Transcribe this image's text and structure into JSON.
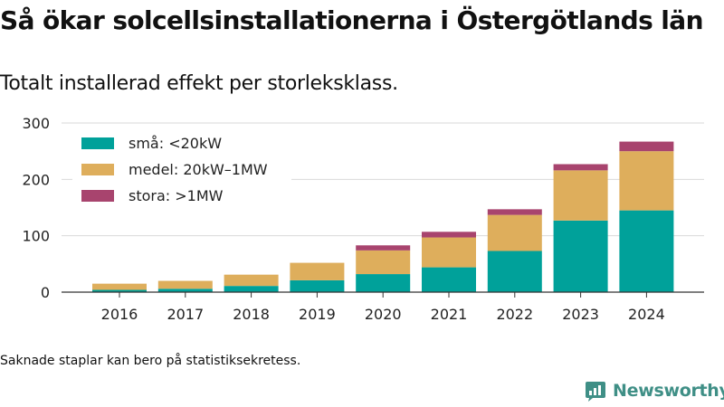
{
  "title": "Så ökar solcellsinstallationerna i Östergötlands län",
  "subtitle": "Totalt installerad effekt per storleksklass.",
  "footnote": "Saknade staplar kan bero på statistiksekretess.",
  "brand": {
    "name": "Newsworthy",
    "logo_icon": "newsworthy-logo-icon",
    "color": "#3f8f86"
  },
  "chart_data": {
    "type": "bar",
    "stacked": true,
    "categories": [
      "2016",
      "2017",
      "2018",
      "2019",
      "2020",
      "2021",
      "2022",
      "2023",
      "2024"
    ],
    "series": [
      {
        "name": "små: <20kW",
        "color": "#00a19a",
        "values": [
          4,
          6,
          11,
          21,
          32,
          44,
          73,
          127,
          145
        ]
      },
      {
        "name": "medel: 20kW–1MW",
        "color": "#deae5c",
        "values": [
          11,
          14,
          20,
          31,
          42,
          53,
          64,
          89,
          105
        ]
      },
      {
        "name": "stora: >1MW",
        "color": "#a8446e",
        "values": [
          0,
          0,
          0,
          0,
          9,
          10,
          10,
          11,
          17
        ]
      }
    ],
    "y_ticks": [
      "0",
      "100",
      "200",
      "300"
    ],
    "ylim": [
      0,
      300
    ],
    "xlabel": "",
    "ylabel": "",
    "grid": true,
    "legend_position": "top-left"
  }
}
